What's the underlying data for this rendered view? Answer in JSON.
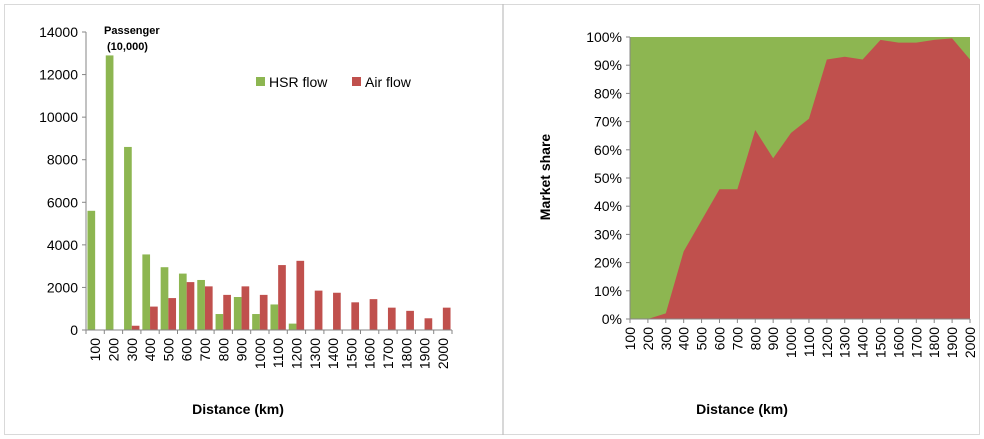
{
  "chart_data": [
    {
      "type": "bar",
      "annotation": [
        "Passenger",
        "(10,000)"
      ],
      "xlabel": "Distance (km)",
      "ylabel": "",
      "ylim": [
        0,
        14000
      ],
      "yticks": [
        "0",
        "2000",
        "4000",
        "6000",
        "8000",
        "10000",
        "12000",
        "14000"
      ],
      "yticks_values": [
        0,
        2000,
        4000,
        6000,
        8000,
        10000,
        12000,
        14000
      ],
      "categories": [
        "100",
        "200",
        "300",
        "400",
        "500",
        "600",
        "700",
        "800",
        "900",
        "1000",
        "1100",
        "1200",
        "1300",
        "1400",
        "1500",
        "1600",
        "1700",
        "1800",
        "1900",
        "2000"
      ],
      "legend_position": "top-right",
      "series": [
        {
          "name": "HSR flow",
          "color": "#8db651",
          "values": [
            5600,
            12900,
            8600,
            3550,
            2950,
            2650,
            2350,
            750,
            1550,
            750,
            1200,
            300,
            0,
            0,
            0,
            0,
            0,
            0,
            0,
            0
          ]
        },
        {
          "name": "Air flow",
          "color": "#c0504d",
          "values": [
            0,
            0,
            200,
            1100,
            1500,
            2250,
            2050,
            1650,
            2050,
            1650,
            3050,
            3250,
            1850,
            1750,
            1300,
            1450,
            1050,
            900,
            550,
            1050
          ]
        }
      ],
      "grid": false
    },
    {
      "type": "area",
      "xlabel": "Distance (km)",
      "ylabel": "Market share",
      "ylim": [
        0,
        100
      ],
      "yticks": [
        "0%",
        "10%",
        "20%",
        "30%",
        "40%",
        "50%",
        "60%",
        "70%",
        "80%",
        "90%",
        "100%"
      ],
      "categories": [
        "100",
        "200",
        "300",
        "400",
        "500",
        "600",
        "700",
        "800",
        "900",
        "1000",
        "1100",
        "1200",
        "1300",
        "1400",
        "1500",
        "1600",
        "1700",
        "1800",
        "1900",
        "2000"
      ],
      "series": [
        {
          "name": "HSR",
          "color": "#8db651",
          "values": [
            100,
            100,
            98,
            76,
            65,
            54,
            54,
            33,
            43,
            34,
            29,
            8,
            7,
            8,
            1,
            2,
            2,
            1,
            0.5,
            8
          ]
        },
        {
          "name": "Air",
          "color": "#c0504d",
          "values": [
            0,
            0,
            2,
            24,
            35,
            46,
            46,
            67,
            57,
            66,
            71,
            92,
            93,
            92,
            99,
            98,
            98,
            99,
            99.5,
            92
          ]
        }
      ],
      "legend": false,
      "grid": false
    }
  ]
}
